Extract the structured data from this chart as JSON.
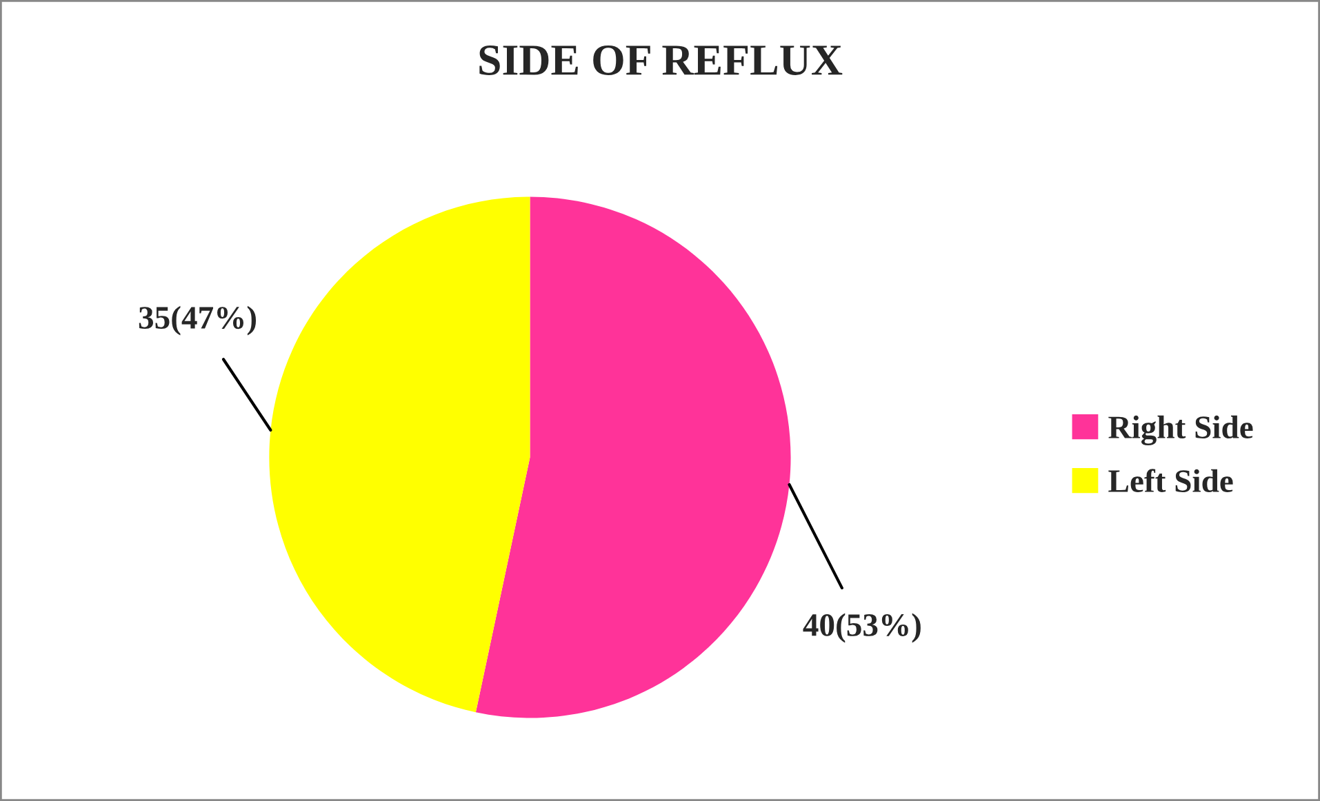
{
  "chart_data": {
    "type": "pie",
    "title": "SIDE OF REFLUX",
    "categories": [
      "Right Side",
      "Left Side"
    ],
    "values": [
      40,
      35
    ],
    "colors": [
      "#ff3399",
      "#ffff00"
    ],
    "value_labels": [
      "40(53%)",
      "35(47%)"
    ],
    "legend": "right"
  }
}
